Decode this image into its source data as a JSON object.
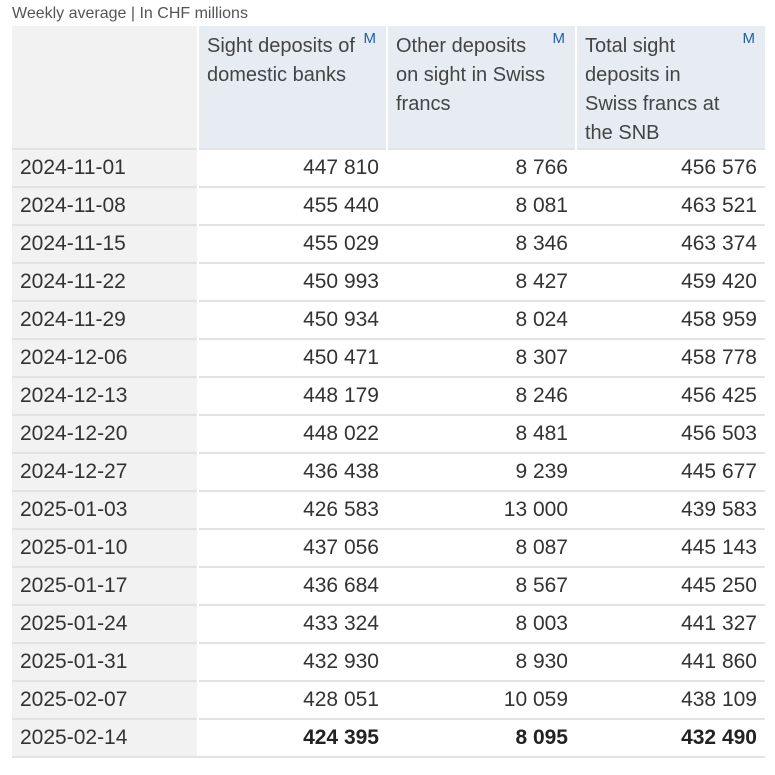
{
  "caption": "Weekly average | In CHF millions",
  "columns": [
    {
      "label": "Sight deposits of domestic banks",
      "marker": "M"
    },
    {
      "label": "Other deposits on sight in Swiss francs",
      "marker": "M"
    },
    {
      "label": "Total sight deposits in Swiss francs at the SNB",
      "marker": "M"
    }
  ],
  "rows": [
    {
      "date": "2024-11-01",
      "values": [
        "447 810",
        "8 766",
        "456 576"
      ]
    },
    {
      "date": "2024-11-08",
      "values": [
        "455 440",
        "8 081",
        "463 521"
      ]
    },
    {
      "date": "2024-11-15",
      "values": [
        "455 029",
        "8 346",
        "463 374"
      ]
    },
    {
      "date": "2024-11-22",
      "values": [
        "450 993",
        "8 427",
        "459 420"
      ]
    },
    {
      "date": "2024-11-29",
      "values": [
        "450 934",
        "8 024",
        "458 959"
      ]
    },
    {
      "date": "2024-12-06",
      "values": [
        "450 471",
        "8 307",
        "458 778"
      ]
    },
    {
      "date": "2024-12-13",
      "values": [
        "448 179",
        "8 246",
        "456 425"
      ]
    },
    {
      "date": "2024-12-20",
      "values": [
        "448 022",
        "8 481",
        "456 503"
      ]
    },
    {
      "date": "2024-12-27",
      "values": [
        "436 438",
        "9 239",
        "445 677"
      ]
    },
    {
      "date": "2025-01-03",
      "values": [
        "426 583",
        "13 000",
        "439 583"
      ]
    },
    {
      "date": "2025-01-10",
      "values": [
        "437 056",
        "8 087",
        "445 143"
      ]
    },
    {
      "date": "2025-01-17",
      "values": [
        "436 684",
        "8 567",
        "445 250"
      ]
    },
    {
      "date": "2025-01-24",
      "values": [
        "433 324",
        "8 003",
        "441 327"
      ]
    },
    {
      "date": "2025-01-31",
      "values": [
        "432 930",
        "8 930",
        "441 860"
      ]
    },
    {
      "date": "2025-02-07",
      "values": [
        "428 051",
        "10 059",
        "438 109"
      ]
    },
    {
      "date": "2025-02-14",
      "values": [
        "424 395",
        "8 095",
        "432 490"
      ]
    }
  ],
  "colors": {
    "header_background": "#e6ecf2",
    "date_column_background": "#f2f2f2",
    "marker_color": "#1f5fa8",
    "grid_line": "#e3e3e3"
  }
}
